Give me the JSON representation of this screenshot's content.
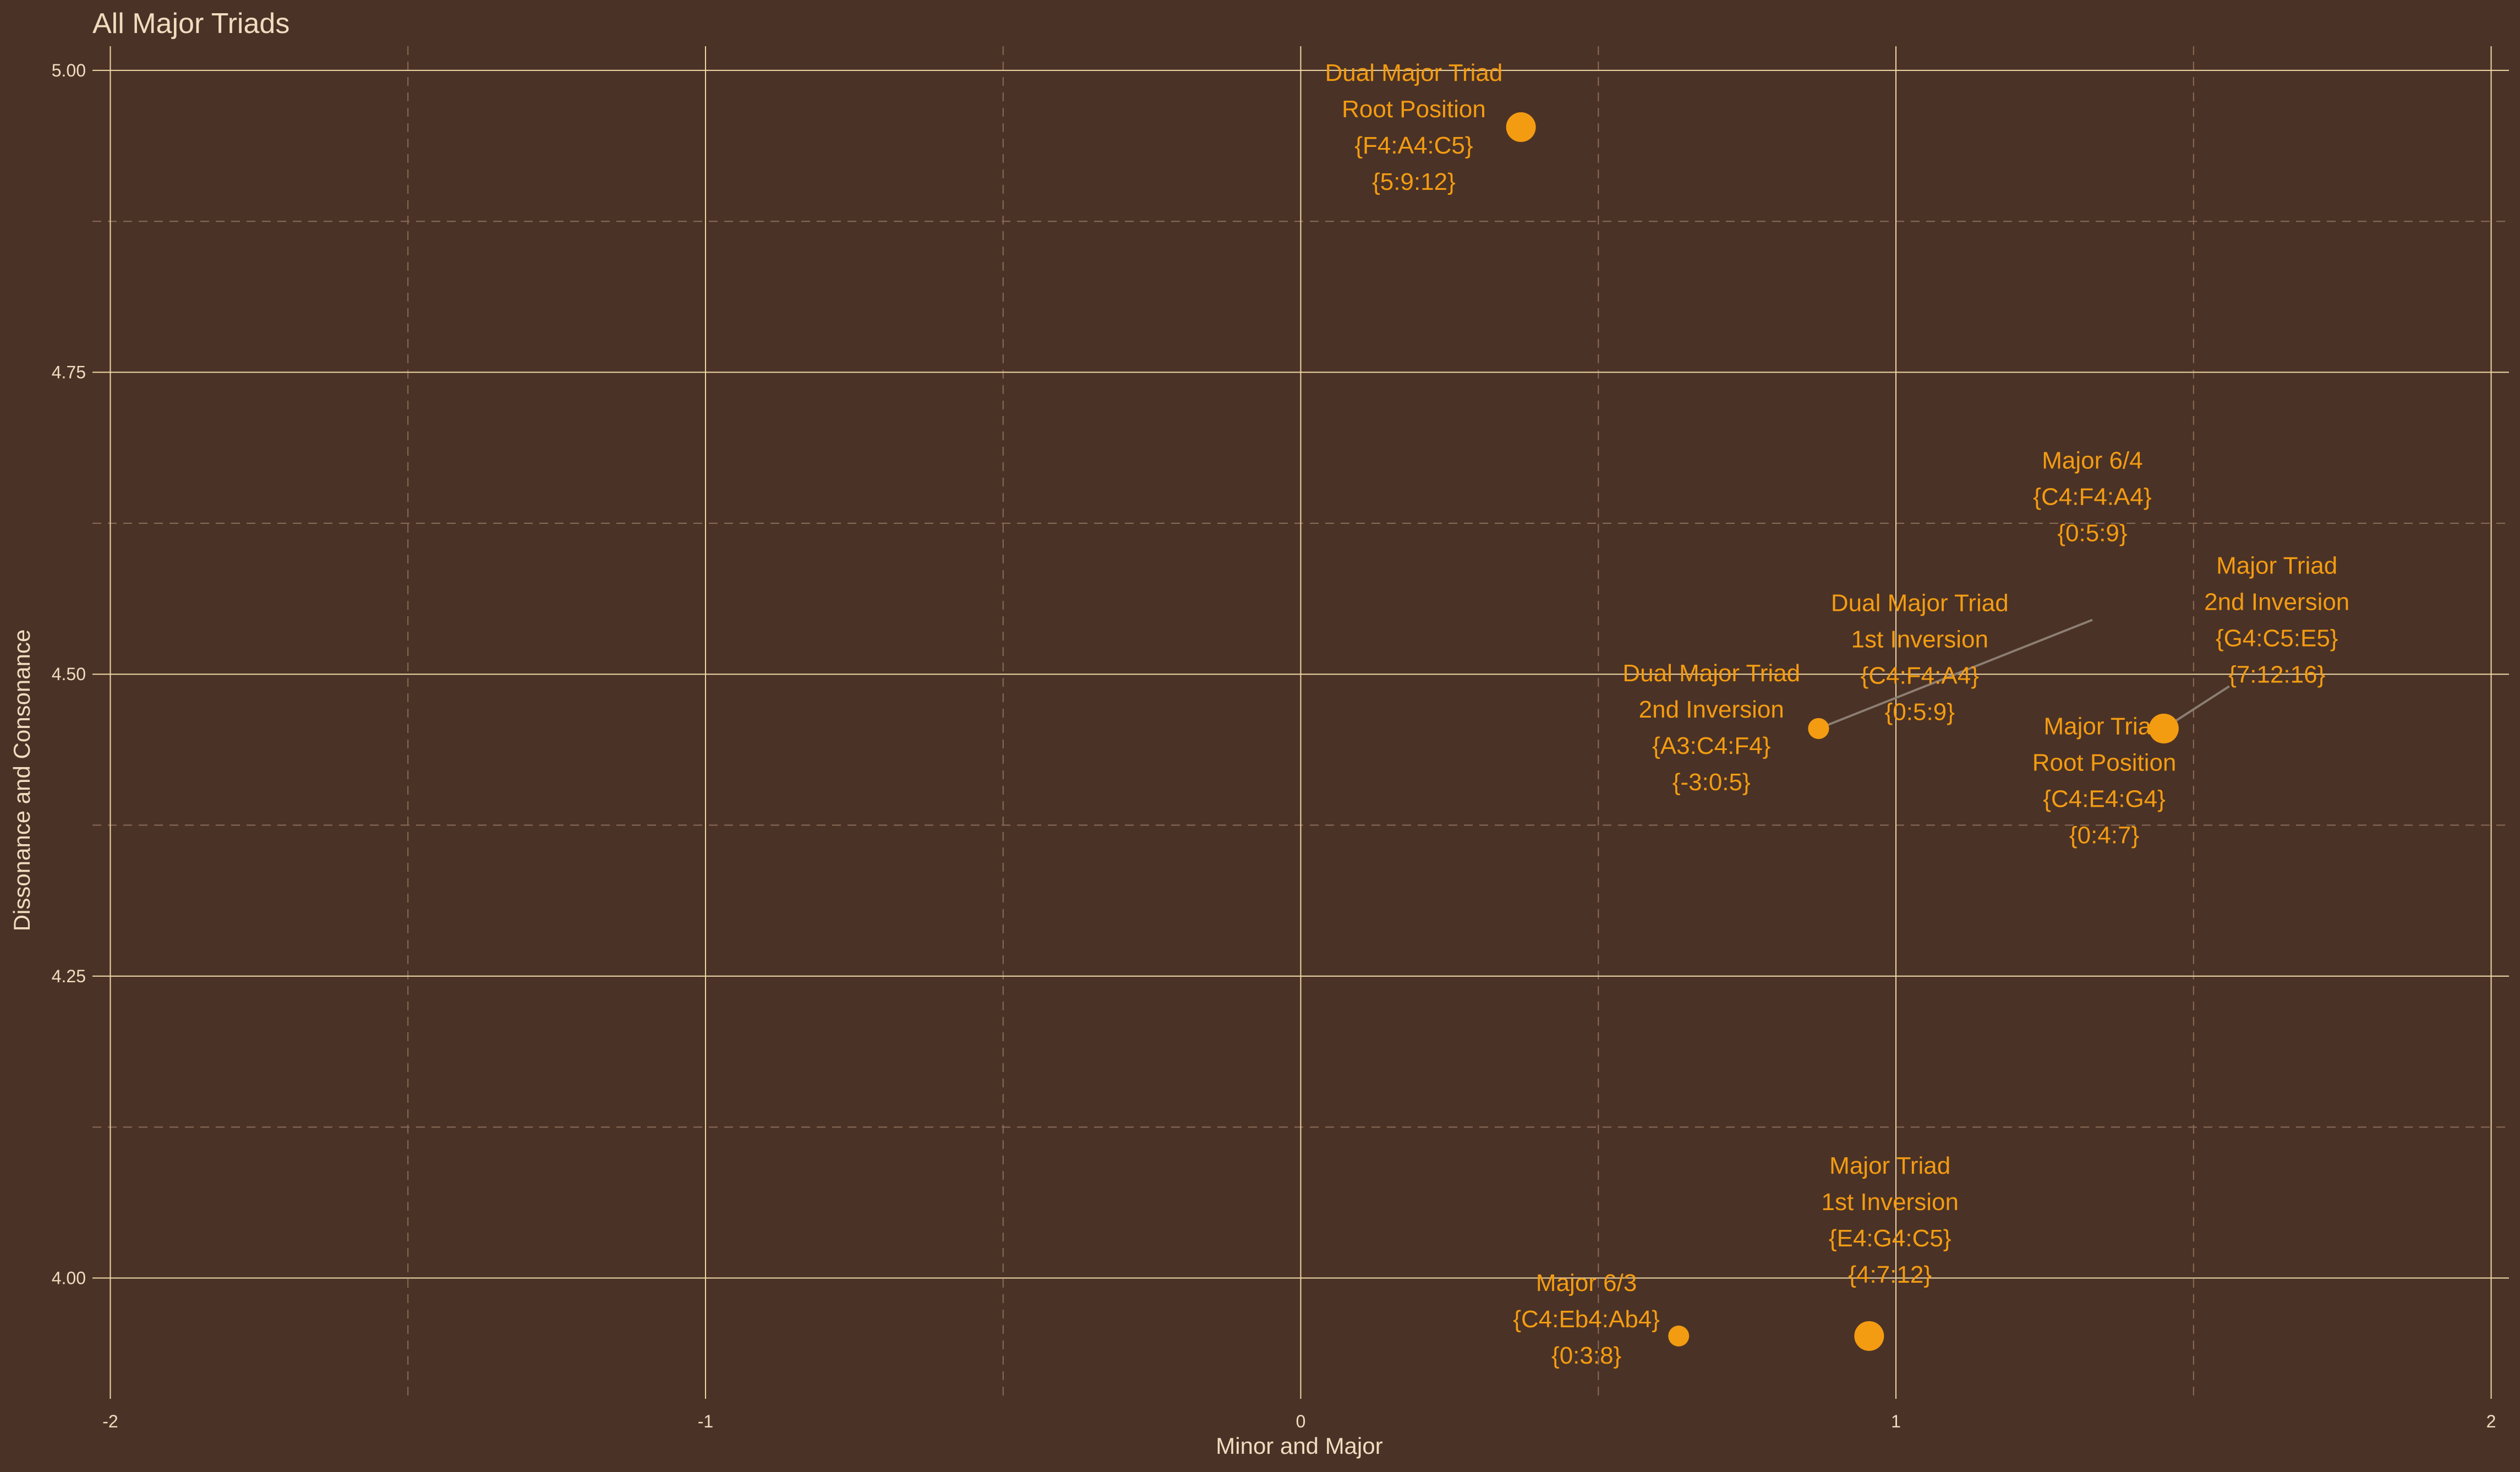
{
  "chart_data": {
    "type": "scatter",
    "title": "All Major Triads",
    "xlabel": "Minor and Major",
    "ylabel": "Dissonance and Consonance",
    "xlim": [
      -2.03,
      2.03
    ],
    "ylim": [
      3.9,
      5.02
    ],
    "x_ticks": [
      -2,
      -1,
      0,
      1,
      2
    ],
    "x_tick_labels": [
      "-2",
      "-1",
      "0",
      "1",
      "2"
    ],
    "y_ticks": [
      4.0,
      4.25,
      4.5,
      4.75,
      5.0
    ],
    "y_tick_labels": [
      "4.00",
      "4.25",
      "4.50",
      "4.75",
      "5.00"
    ],
    "grid": true,
    "colors": {
      "background": "#4b3226",
      "major_grid": "#efd9a8",
      "minor_grid": "#8a6c58",
      "point": "#f39c12",
      "label": "#f39c12",
      "leader": "#8c7e72",
      "text": "#f1dcc0"
    },
    "points": [
      {
        "x": 0.37,
        "y": 4.953,
        "size": "large",
        "label": {
          "x": 0.19,
          "y": 4.953,
          "lines": [
            "Dual Major Triad",
            "Root Position",
            "{F4:A4:C5}",
            "{5:9:12}"
          ]
        }
      },
      {
        "x": 0.87,
        "y": 4.455,
        "size": "small",
        "label": {
          "x": 0.69,
          "y": 4.456,
          "lines": [
            "Dual Major Triad",
            "2nd Inversion",
            "{A3:C4:F4}",
            "{-3:0:5}"
          ]
        }
      },
      {
        "x": 1.45,
        "y": 4.455,
        "size": "large",
        "label": {
          "x": 1.35,
          "y": 4.412,
          "lines": [
            "Major Triad",
            "Root Position",
            "{C4:E4:G4}",
            "{0:4:7}"
          ]
        }
      },
      {
        "x": 1.45,
        "y": 4.455,
        "size": "large",
        "label": {
          "x": 1.64,
          "y": 4.545,
          "lines": [
            "Major Triad",
            "2nd Inversion",
            "{G4:C5:E5}",
            "{7:12:16}"
          ]
        }
      },
      {
        "x": 0.87,
        "y": 4.455,
        "size": "small",
        "label": {
          "x": 1.33,
          "y": 4.647,
          "lines": [
            "Major 6/4",
            "{C4:F4:A4}",
            "{0:5:9}"
          ]
        }
      },
      {
        "x": 1.45,
        "y": 4.455,
        "size": "large",
        "label": {
          "x": 1.04,
          "y": 4.514,
          "lines": [
            "Dual Major Triad",
            "1st Inversion",
            "{C4:F4:A4}",
            "{0:5:9}"
          ]
        }
      },
      {
        "x": 0.955,
        "y": 3.952,
        "size": "large",
        "label": {
          "x": 0.99,
          "y": 4.048,
          "lines": [
            "Major Triad",
            "1st Inversion",
            "{E4:G4:C5}",
            "{4:7:12}"
          ]
        }
      },
      {
        "x": 0.635,
        "y": 3.952,
        "size": "small",
        "label": {
          "x": 0.48,
          "y": 3.966,
          "lines": [
            "Major 6/3",
            "{C4:Eb4:Ab4}",
            "{0:3:8}"
          ]
        }
      }
    ],
    "leaders": [
      {
        "from": [
          0.87,
          4.455
        ],
        "to": [
          1.33,
          4.545
        ]
      },
      {
        "from": [
          1.45,
          4.455
        ],
        "to": [
          1.56,
          4.49
        ]
      }
    ]
  }
}
